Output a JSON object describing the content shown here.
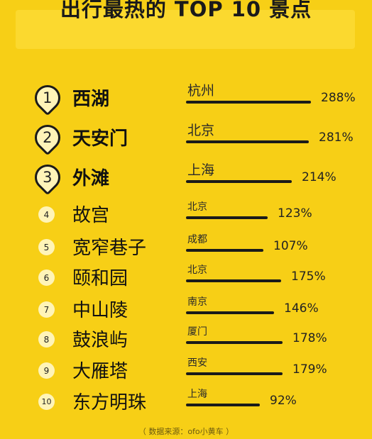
{
  "title": "出行最热的 TOP 10 景点",
  "source": "（ 数据来源：ofo小黄车 ）",
  "chart_data": {
    "type": "bar",
    "title": "出行最热的 TOP 10 景点",
    "categories": [
      "西湖",
      "天安门",
      "外滩",
      "故宫",
      "宽窄巷子",
      "颐和园",
      "中山陵",
      "鼓浪屿",
      "大雁塔",
      "东方明珠"
    ],
    "series": [
      {
        "values": [
          288,
          281,
          214,
          123,
          107,
          175,
          146,
          178,
          179,
          92
        ]
      }
    ],
    "ranks": [
      "1",
      "2",
      "3",
      "4",
      "5",
      "6",
      "7",
      "8",
      "9",
      "10"
    ],
    "cities": [
      "杭州",
      "北京",
      "上海",
      "北京",
      "成都",
      "北京",
      "南京",
      "厦门",
      "西安",
      "上海"
    ],
    "labels": [
      "288%",
      "281%",
      "214%",
      "123%",
      "107%",
      "175%",
      "146%",
      "178%",
      "179%",
      "92%"
    ]
  }
}
